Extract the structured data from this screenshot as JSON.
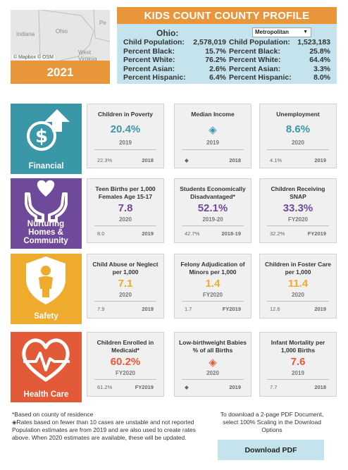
{
  "map": {
    "labels": [
      "Indiana",
      "Ohio",
      "West Virginia",
      "Pe"
    ],
    "credit": "© Mapbox © OSM"
  },
  "year": "2021",
  "profile": {
    "title": "KIDS COUNT COUNTY PROFILE",
    "state_name": "Ohio:",
    "area_select": "Metropolitan",
    "state_stats": [
      {
        "label": "Child Population:",
        "value": "2,578,019"
      },
      {
        "label": "Percent Black:",
        "value": "15.7%"
      },
      {
        "label": "Percent White:",
        "value": "76.2%"
      },
      {
        "label": "Percent Asian:",
        "value": "2.6%"
      },
      {
        "label": "Percent Hispanic:",
        "value": "6.4%"
      }
    ],
    "area_stats": [
      {
        "label": "Child Population:",
        "value": "1,523,183"
      },
      {
        "label": "Percent Black:",
        "value": "25.8%"
      },
      {
        "label": "Percent White:",
        "value": "64.4%"
      },
      {
        "label": "Percent Asian:",
        "value": "3.3%"
      },
      {
        "label": "Percent Hispanic:",
        "value": "8.0%"
      }
    ]
  },
  "colors": {
    "financial": "#3a97a7",
    "nurturing": "#6f4a9a",
    "safety": "#eeab2e",
    "health": "#e25a38",
    "orange": "#e9963b",
    "light_blue": "#c4e3ec"
  },
  "categories": [
    {
      "label": "Financial",
      "icon": "money-arrow-icon",
      "cards": [
        {
          "title": "Children in Poverty",
          "value": "20.4%",
          "year": "2019",
          "prev_value": "22.3%",
          "prev_year": "2018"
        },
        {
          "title": "Median Income",
          "value": "◈",
          "year": "2019",
          "prev_value": "◆",
          "prev_year": "2018"
        },
        {
          "title": "Unemployment",
          "value": "8.6%",
          "year": "2020",
          "prev_value": "4.1%",
          "prev_year": "2019"
        }
      ]
    },
    {
      "label": "Nurturing Homes & Community",
      "icon": "hands-heart-icon",
      "cards": [
        {
          "title": "Teen Births per 1,000 Females Age 15-17",
          "value": "7.8",
          "year": "2020",
          "prev_value": "8.0",
          "prev_year": "2019"
        },
        {
          "title": "Students Economically Disadvantaged*",
          "value": "52.1%",
          "year": "2019-20",
          "prev_value": "42.7%",
          "prev_year": "2018-19"
        },
        {
          "title": "Children Receiving SNAP",
          "value": "33.3%",
          "year": "FY2020",
          "prev_value": "32.2%",
          "prev_year": "FY2019"
        }
      ]
    },
    {
      "label": "Safety",
      "icon": "shield-child-icon",
      "cards": [
        {
          "title": "Child Abuse or Neglect per 1,000",
          "value": "7.1",
          "year": "2020",
          "prev_value": "7.9",
          "prev_year": "2019"
        },
        {
          "title": "Felony Adjudication of Minors per 1,000",
          "value": "1.4",
          "year": "FY2020",
          "prev_value": "1.7",
          "prev_year": "FY2019"
        },
        {
          "title": "Children in Foster Care per 1,000",
          "value": "11.4",
          "year": "2020",
          "prev_value": "12.6",
          "prev_year": "2019"
        }
      ]
    },
    {
      "label": "Health Care",
      "icon": "heart-pulse-icon",
      "cards": [
        {
          "title": "Children Enrolled in Medicaid*",
          "value": "60.2%",
          "year": "FY2020",
          "prev_value": "61.2%",
          "prev_year": "FY2019"
        },
        {
          "title": "Low-birthweight Babies % of all Births",
          "value": "◈",
          "year": "2020",
          "prev_value": "◆",
          "prev_year": "2019"
        },
        {
          "title": "Infant Mortality per 1,000 Births",
          "value": "7.6",
          "year": "2019",
          "prev_value": "7.7",
          "prev_year": "2018"
        }
      ]
    }
  ],
  "footer": {
    "notes": [
      "*Based on county of residence",
      "◈Rates based on fewer than 10 cases are unstable and not reported",
      "Population estimates are from 2019 and are also used to create rates above. When 2020 estimates are available, these will be updated."
    ],
    "download_text": "To download a 2-page PDF Document, select 100% Scaling in the Download Options",
    "download_button": "Download PDF"
  }
}
